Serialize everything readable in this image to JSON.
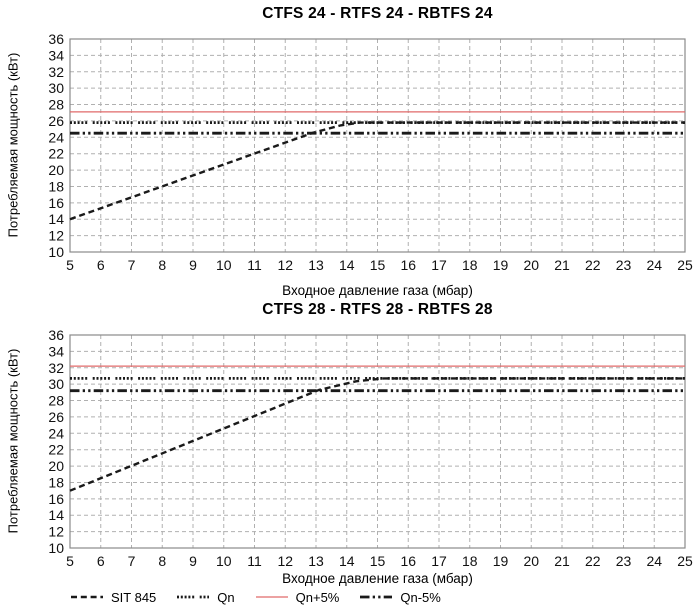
{
  "page": {
    "background": "#ffffff"
  },
  "legend": [
    {
      "label": "SIT 845",
      "style": "dashed",
      "color": "#1a1a1a"
    },
    {
      "label": "Qn",
      "style": "dotted",
      "color": "#1a1a1a"
    },
    {
      "label": "Qn+5%",
      "style": "solid",
      "color": "#e16a6a"
    },
    {
      "label": "Qn-5%",
      "style": "dashdot",
      "color": "#1a1a1a"
    }
  ],
  "chart_data": [
    {
      "type": "line",
      "title": "CTFS 24 - RTFS 24 - RBTFS 24",
      "xlabel": "Входное давление газа (мбар)",
      "ylabel": "Потребляемая мощность (кВт)",
      "xlim": [
        5,
        25
      ],
      "xstep": 1,
      "ylim": [
        10,
        36
      ],
      "ystep": 2,
      "grid": true,
      "legend_position": "bottom",
      "series": [
        {
          "name": "SIT 845",
          "style": "dashed",
          "color": "#1a1a1a",
          "points": [
            [
              5,
              14
            ],
            [
              12.9,
              24.55
            ],
            [
              13.8,
              25.45
            ],
            [
              14.4,
              25.8
            ],
            [
              25,
              25.8
            ]
          ]
        },
        {
          "name": "Qn",
          "style": "dotted",
          "color": "#1a1a1a",
          "points": [
            [
              5,
              25.8
            ],
            [
              25,
              25.8
            ]
          ]
        },
        {
          "name": "Qn+5%",
          "style": "solid",
          "color": "#e16a6a",
          "points": [
            [
              5,
              27.1
            ],
            [
              25,
              27.1
            ]
          ]
        },
        {
          "name": "Qn-5%",
          "style": "dashdot",
          "color": "#1a1a1a",
          "points": [
            [
              5,
              24.5
            ],
            [
              25,
              24.5
            ]
          ]
        }
      ]
    },
    {
      "type": "line",
      "title": "CTFS 28 - RTFS 28 - RBTFS 28",
      "xlabel": "Входное давление газа (мбар)",
      "ylabel": "Потребляемая мощность (кВт)",
      "xlim": [
        5,
        25
      ],
      "xstep": 1,
      "ylim": [
        10,
        36
      ],
      "ystep": 2,
      "grid": true,
      "legend_position": "bottom",
      "series": [
        {
          "name": "SIT 845",
          "style": "dashed",
          "color": "#1a1a1a",
          "points": [
            [
              5,
              17
            ],
            [
              13.1,
              29.3
            ],
            [
              14.3,
              30.35
            ],
            [
              15.2,
              30.7
            ],
            [
              25,
              30.7
            ]
          ]
        },
        {
          "name": "Qn",
          "style": "dotted",
          "color": "#1a1a1a",
          "points": [
            [
              5,
              30.7
            ],
            [
              25,
              30.7
            ]
          ]
        },
        {
          "name": "Qn+5%",
          "style": "solid",
          "color": "#e16a6a",
          "points": [
            [
              5,
              32.2
            ],
            [
              25,
              32.2
            ]
          ]
        },
        {
          "name": "Qn-5%",
          "style": "dashdot",
          "color": "#1a1a1a",
          "points": [
            [
              5,
              29.2
            ],
            [
              25,
              29.2
            ]
          ]
        }
      ]
    }
  ]
}
